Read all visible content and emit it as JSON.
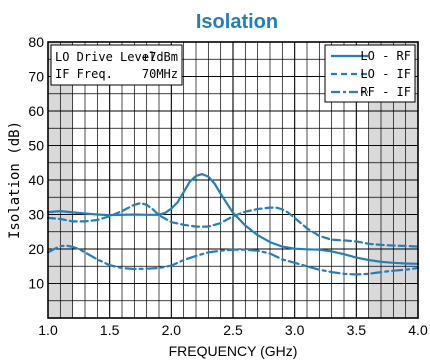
{
  "chart_data": {
    "type": "line",
    "title": "Isolation",
    "xlabel": "FREQUENCY (GHz)",
    "ylabel": "Isolation (dB)",
    "xlim": [
      1.0,
      4.0
    ],
    "ylim": [
      0,
      80
    ],
    "x_ticks": [
      "1.0",
      "1.5",
      "2.0",
      "2.5",
      "3.0",
      "3.5",
      "4.0"
    ],
    "y_ticks": [
      "10",
      "20",
      "30",
      "40",
      "50",
      "60",
      "70",
      "80"
    ],
    "grid": true,
    "legend_position": "top-right",
    "shaded_x_ranges": [
      [
        1.0,
        1.2
      ],
      [
        3.6,
        4.0
      ]
    ],
    "annotation": {
      "line1_label": "LO Drive Level",
      "line1_value": "+7dBm",
      "line2_label": "IF Freq.",
      "line2_value": "70MHz"
    },
    "colors": {
      "series": "#1f7fbf",
      "title": "#1f7fbf",
      "shade": "#d9d9d9",
      "grid": "#000000"
    },
    "series": [
      {
        "name": "LO - RF",
        "style": "solid",
        "x": [
          1.0,
          1.1,
          1.2,
          1.3,
          1.4,
          1.5,
          1.6,
          1.7,
          1.8,
          1.9,
          1.95,
          2.0,
          2.05,
          2.1,
          2.15,
          2.2,
          2.25,
          2.3,
          2.35,
          2.4,
          2.5,
          2.6,
          2.7,
          2.8,
          2.9,
          3.0,
          3.1,
          3.2,
          3.3,
          3.4,
          3.5,
          3.6,
          3.7,
          3.8,
          3.9,
          4.0
        ],
        "y": [
          30.7,
          31.0,
          30.6,
          30.3,
          30.0,
          29.8,
          29.9,
          30.0,
          29.9,
          29.9,
          30.5,
          31.7,
          33.5,
          36.5,
          39.5,
          41.2,
          41.7,
          41.0,
          39.0,
          36.0,
          30.5,
          26.8,
          24.0,
          22.0,
          20.7,
          20.1,
          19.9,
          19.8,
          19.3,
          18.5,
          17.5,
          16.8,
          16.3,
          16.0,
          15.8,
          15.7
        ]
      },
      {
        "name": "LO - IF",
        "style": "dashed",
        "x": [
          1.0,
          1.1,
          1.2,
          1.3,
          1.4,
          1.5,
          1.6,
          1.7,
          1.75,
          1.8,
          1.85,
          1.9,
          2.0,
          2.1,
          2.2,
          2.3,
          2.4,
          2.5,
          2.6,
          2.7,
          2.8,
          2.85,
          2.9,
          2.95,
          3.0,
          3.1,
          3.2,
          3.3,
          3.4,
          3.5,
          3.6,
          3.7,
          3.8,
          3.9,
          4.0
        ],
        "y": [
          29.0,
          28.7,
          28.0,
          28.0,
          28.4,
          29.5,
          31.0,
          32.8,
          33.3,
          32.8,
          31.5,
          29.8,
          27.8,
          27.0,
          26.5,
          26.5,
          27.5,
          29.5,
          30.8,
          31.6,
          32.0,
          32.0,
          31.5,
          30.5,
          29.0,
          26.0,
          23.8,
          22.7,
          22.5,
          22.2,
          21.5,
          21.2,
          21.0,
          20.9,
          20.7
        ]
      },
      {
        "name": "RF - IF",
        "style": "dashdot",
        "x": [
          1.0,
          1.05,
          1.1,
          1.15,
          1.2,
          1.25,
          1.3,
          1.4,
          1.5,
          1.6,
          1.7,
          1.8,
          1.9,
          2.0,
          2.1,
          2.2,
          2.3,
          2.4,
          2.5,
          2.6,
          2.7,
          2.8,
          2.9,
          3.0,
          3.1,
          3.2,
          3.3,
          3.4,
          3.5,
          3.6,
          3.7,
          3.8,
          3.9,
          4.0
        ],
        "y": [
          19.0,
          20.0,
          20.8,
          21.0,
          20.6,
          20.0,
          19.0,
          17.0,
          15.3,
          14.5,
          14.2,
          14.3,
          14.5,
          15.2,
          16.8,
          18.0,
          19.0,
          19.5,
          19.8,
          19.8,
          19.5,
          18.7,
          17.0,
          16.0,
          15.0,
          14.0,
          13.3,
          12.8,
          12.6,
          12.8,
          13.3,
          13.7,
          14.0,
          14.5
        ]
      }
    ]
  }
}
